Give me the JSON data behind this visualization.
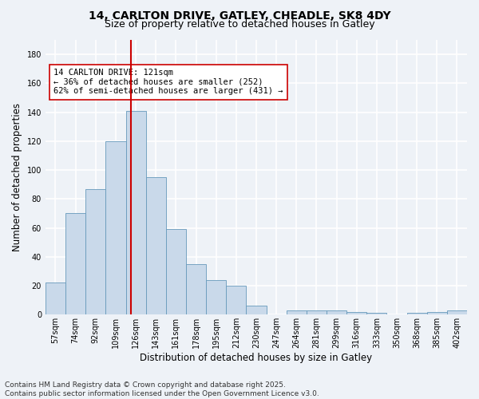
{
  "title_line1": "14, CARLTON DRIVE, GATLEY, CHEADLE, SK8 4DY",
  "title_line2": "Size of property relative to detached houses in Gatley",
  "xlabel": "Distribution of detached houses by size in Gatley",
  "ylabel": "Number of detached properties",
  "bar_labels": [
    "57sqm",
    "74sqm",
    "92sqm",
    "109sqm",
    "126sqm",
    "143sqm",
    "161sqm",
    "178sqm",
    "195sqm",
    "212sqm",
    "230sqm",
    "247sqm",
    "264sqm",
    "281sqm",
    "299sqm",
    "316sqm",
    "333sqm",
    "350sqm",
    "368sqm",
    "385sqm",
    "402sqm"
  ],
  "bar_heights": [
    22,
    70,
    87,
    120,
    141,
    95,
    59,
    35,
    24,
    20,
    6,
    0,
    3,
    3,
    3,
    2,
    1,
    0,
    1,
    2,
    3
  ],
  "bar_color": "#c9d9ea",
  "bar_edgecolor": "#6699bb",
  "vline_index": 3.75,
  "vline_color": "#cc0000",
  "annotation_text": "14 CARLTON DRIVE: 121sqm\n← 36% of detached houses are smaller (252)\n62% of semi-detached houses are larger (431) →",
  "annotation_box_color": "#ffffff",
  "annotation_box_edgecolor": "#cc0000",
  "ylim": [
    0,
    190
  ],
  "yticks": [
    0,
    20,
    40,
    60,
    80,
    100,
    120,
    140,
    160,
    180
  ],
  "background_color": "#eef2f7",
  "grid_color": "#ffffff",
  "footer_line1": "Contains HM Land Registry data © Crown copyright and database right 2025.",
  "footer_line2": "Contains public sector information licensed under the Open Government Licence v3.0.",
  "title_fontsize": 10,
  "subtitle_fontsize": 9,
  "axis_label_fontsize": 8.5,
  "tick_fontsize": 7,
  "footer_fontsize": 6.5,
  "annotation_fontsize": 7.5
}
